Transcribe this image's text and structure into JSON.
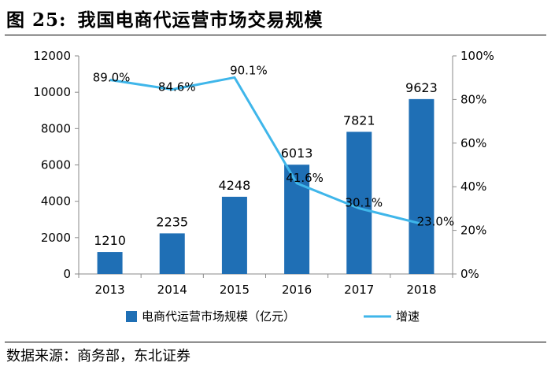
{
  "title": {
    "figure_label": "图 25:",
    "text": "我国电商代运营市场交易规模"
  },
  "source": "数据来源：商务部，东北证券",
  "chart_data": {
    "type": "bar",
    "categories": [
      "2013",
      "2014",
      "2015",
      "2016",
      "2017",
      "2018"
    ],
    "series": [
      {
        "name": "电商代运营市场规模（亿元）",
        "type": "bar",
        "axis": "left",
        "values": [
          1210,
          2235,
          4248,
          6013,
          7821,
          9623
        ],
        "labels": [
          "1210",
          "2235",
          "4248",
          "6013",
          "7821",
          "9623"
        ],
        "color": "#1f6fb5"
      },
      {
        "name": "增速",
        "type": "line",
        "axis": "right",
        "values": [
          89.0,
          84.6,
          90.1,
          41.6,
          30.1,
          23.0
        ],
        "labels": [
          "89.0%",
          "84.6%",
          "90.1%",
          "41.6%",
          "30.1%",
          "23.0%"
        ],
        "color": "#3fb6ea"
      }
    ],
    "y_left": {
      "ylim": [
        0,
        12000
      ],
      "ticks": [
        0,
        2000,
        4000,
        6000,
        8000,
        10000,
        12000
      ],
      "tick_labels": [
        "0",
        "2000",
        "4000",
        "6000",
        "8000",
        "10000",
        "12000"
      ]
    },
    "y_right": {
      "ylim": [
        0,
        100
      ],
      "ticks": [
        0,
        20,
        40,
        60,
        80,
        100
      ],
      "tick_labels": [
        "0%",
        "20%",
        "40%",
        "60%",
        "80%",
        "100%"
      ]
    },
    "grid": false,
    "legend_position": "bottom"
  }
}
